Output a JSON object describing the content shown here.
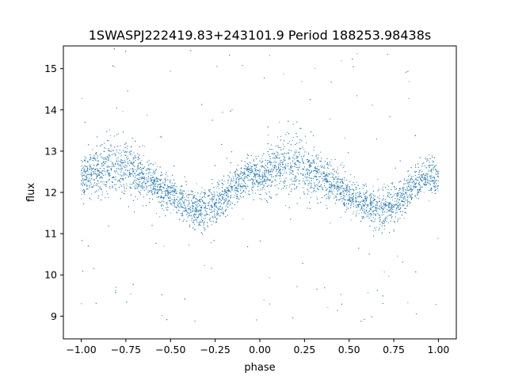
{
  "chart_data": {
    "type": "scatter",
    "title": "1SWASPJ222419.83+243101.9 Period 188253.98438s",
    "xlabel": "phase",
    "ylabel": "flux",
    "xlim": [
      -1.1,
      1.1
    ],
    "ylim": [
      8.45,
      15.55
    ],
    "xticks": [
      -1.0,
      -0.75,
      -0.5,
      -0.25,
      0.0,
      0.25,
      0.5,
      0.75,
      1.0
    ],
    "xtick_labels": [
      "−1.00",
      "−0.75",
      "−0.50",
      "−0.25",
      "0.00",
      "0.25",
      "0.50",
      "0.75",
      "1.00"
    ],
    "yticks": [
      9,
      10,
      11,
      12,
      13,
      14,
      15
    ],
    "ytick_labels": [
      "9",
      "10",
      "11",
      "12",
      "13",
      "14",
      "15"
    ],
    "grid": false,
    "marker_color": "#1f77b4",
    "series": [
      {
        "phase": [
          -1.0,
          -0.95,
          -0.9,
          -0.85,
          -0.8,
          -0.75,
          -0.7,
          -0.65,
          -0.6,
          -0.55,
          -0.5,
          -0.45,
          -0.4,
          -0.35,
          -0.3,
          -0.25,
          -0.2,
          -0.15,
          -0.1,
          -0.05,
          0.0,
          0.05,
          0.1,
          0.15,
          0.2,
          0.25,
          0.3,
          0.35,
          0.4,
          0.45,
          0.5,
          0.55,
          0.6,
          0.65,
          0.7,
          0.75,
          0.8,
          0.85,
          0.9,
          0.95,
          1.0
        ],
        "flux_mean": [
          12.35,
          12.45,
          12.55,
          12.62,
          12.65,
          12.6,
          12.5,
          12.38,
          12.25,
          12.1,
          11.95,
          11.8,
          11.68,
          11.6,
          11.58,
          11.7,
          11.9,
          12.1,
          12.3,
          12.45,
          12.35,
          12.45,
          12.55,
          12.62,
          12.65,
          12.6,
          12.5,
          12.38,
          12.25,
          12.1,
          11.95,
          11.8,
          11.68,
          11.6,
          11.58,
          11.7,
          11.9,
          12.1,
          12.3,
          12.45,
          12.35
        ],
        "flux_spread": [
          0.55,
          0.6,
          0.7,
          0.8,
          0.85,
          0.8,
          0.7,
          0.6,
          0.55,
          0.5,
          0.45,
          0.5,
          0.55,
          0.6,
          0.65,
          0.55,
          0.45,
          0.45,
          0.45,
          0.45,
          0.55,
          0.6,
          0.7,
          0.8,
          0.85,
          0.8,
          0.7,
          0.6,
          0.55,
          0.5,
          0.45,
          0.5,
          0.55,
          0.6,
          0.65,
          0.55,
          0.45,
          0.45,
          0.45,
          0.45,
          0.55
        ]
      }
    ]
  }
}
